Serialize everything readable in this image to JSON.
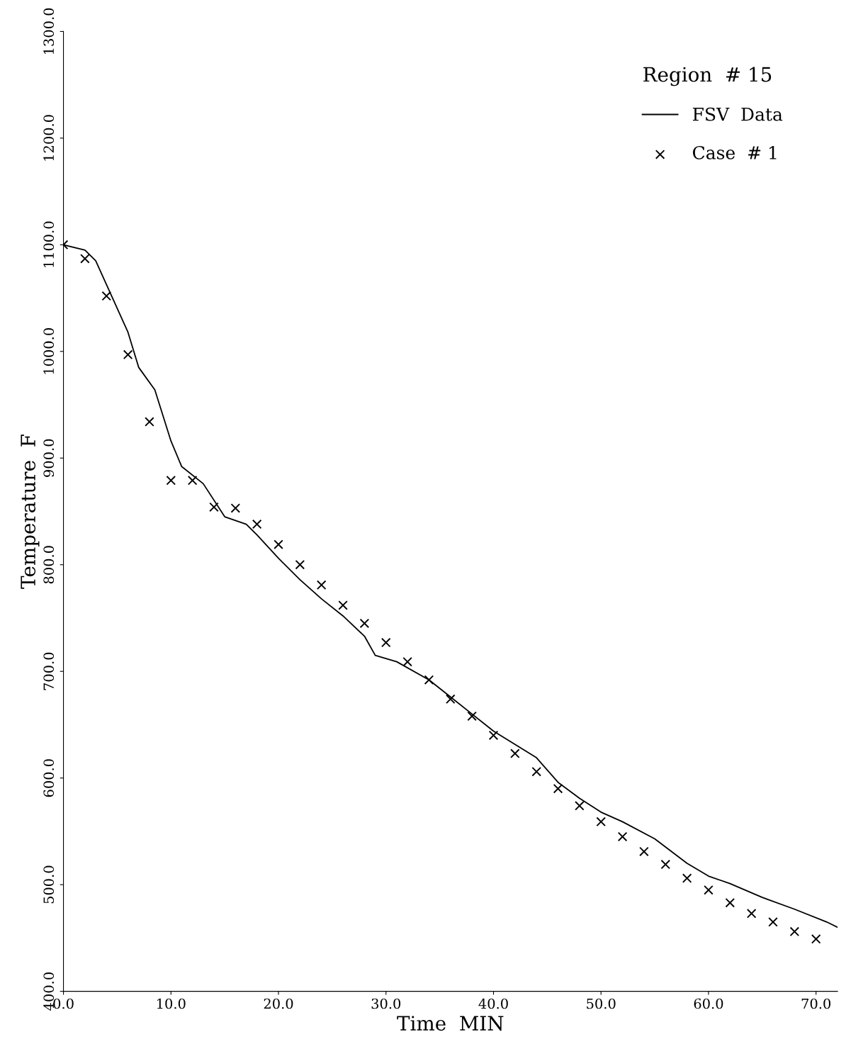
{
  "chart_data": {
    "type": "line",
    "xlabel": "Time  MIN",
    "ylabel": "Temperature  F",
    "legend_title": "Region  # 15",
    "legend": "top right",
    "grid": false,
    "xlim": [
      0,
      72
    ],
    "ylim": [
      400,
      1300
    ],
    "xticks": [
      {
        "value": 0,
        "label": "0.0"
      },
      {
        "value": 10,
        "label": "10.0"
      },
      {
        "value": 20,
        "label": "20.0"
      },
      {
        "value": 30,
        "label": "30.0"
      },
      {
        "value": 40,
        "label": "40.0"
      },
      {
        "value": 50,
        "label": "50.0"
      },
      {
        "value": 60,
        "label": "60.0"
      },
      {
        "value": 70,
        "label": "70.0"
      }
    ],
    "yticks": [
      {
        "value": 400,
        "label": "400.0"
      },
      {
        "value": 500,
        "label": "500.0"
      },
      {
        "value": 600,
        "label": "600.0"
      },
      {
        "value": 700,
        "label": "700.0"
      },
      {
        "value": 800,
        "label": "800.0"
      },
      {
        "value": 900,
        "label": "900.0"
      },
      {
        "value": 1000,
        "label": "1000.0"
      },
      {
        "value": 1100,
        "label": "1100.0"
      },
      {
        "value": 1200,
        "label": "1200.0"
      },
      {
        "value": 1300,
        "label": "1300.0"
      }
    ],
    "series": [
      {
        "name": "FSV  Data",
        "color": "#000000",
        "line_style": "solid",
        "marker": "none",
        "x": [
          0,
          2,
          3,
          6,
          7,
          8.5,
          10,
          11,
          13,
          15,
          17,
          18,
          20,
          22,
          24,
          26,
          28,
          29,
          31,
          34,
          36,
          38,
          40,
          44,
          46,
          48,
          50,
          52,
          55,
          58,
          60,
          62,
          65,
          68,
          71,
          72
        ],
        "values": [
          1100,
          1095,
          1085,
          1018,
          985,
          964,
          916,
          892,
          876,
          845,
          838,
          828,
          806,
          786,
          768,
          752,
          733,
          715,
          709,
          692,
          676,
          660,
          644,
          619,
          596,
          581,
          568,
          559,
          543,
          520,
          508,
          501,
          488,
          477,
          465,
          460
        ]
      },
      {
        "name": "Case  # 1",
        "type": "scatter",
        "color": "#000000",
        "marker": "cross",
        "x": [
          0,
          2,
          4,
          6,
          8,
          10,
          12,
          14,
          16,
          18,
          20,
          22,
          24,
          26,
          28,
          30,
          32,
          34,
          36,
          38,
          40,
          42,
          44,
          46,
          48,
          50,
          52,
          54,
          56,
          58,
          60,
          62,
          64,
          66,
          68,
          70
        ],
        "values": [
          1100,
          1087,
          1052,
          997,
          934,
          879,
          879,
          854,
          853,
          838,
          819,
          800,
          781,
          762,
          745,
          727,
          709,
          692,
          674,
          658,
          640,
          623,
          606,
          590,
          574,
          559,
          545,
          531,
          519,
          506,
          495,
          483,
          473,
          465,
          456,
          449
        ]
      }
    ]
  }
}
